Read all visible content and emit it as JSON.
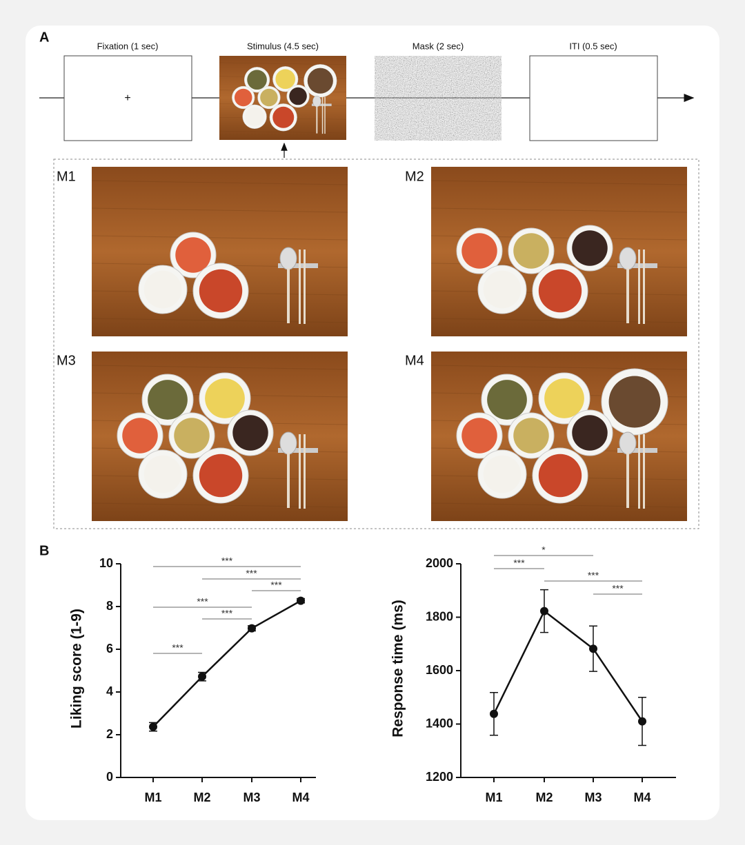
{
  "panel_a": {
    "label": "A",
    "stages": [
      "Fixation (1 sec)",
      "Stimulus (4.5 sec)",
      "Mask (2 sec)",
      "ITI (0.5 sec)"
    ],
    "fixation_cross": "+",
    "menus": [
      "M1",
      "M2",
      "M3",
      "M4"
    ]
  },
  "panel_b": {
    "label": "B"
  },
  "chart_data": [
    {
      "type": "line",
      "y_label": "Liking score (1-9)",
      "categories": [
        "M1",
        "M2",
        "M3",
        "M4"
      ],
      "values": [
        2.37,
        4.72,
        6.98,
        8.27
      ],
      "errors": [
        0.2,
        0.2,
        0.12,
        0.1
      ],
      "color": "#111111",
      "ylim": [
        0,
        10
      ],
      "yticks": [
        0,
        2,
        4,
        6,
        8,
        10
      ],
      "comparisons": [
        {
          "from": "M1",
          "to": "M4",
          "label": "***"
        },
        {
          "from": "M2",
          "to": "M4",
          "label": "***"
        },
        {
          "from": "M3",
          "to": "M4",
          "label": "***"
        },
        {
          "from": "M1",
          "to": "M3",
          "label": "***"
        },
        {
          "from": "M2",
          "to": "M3",
          "label": "***"
        },
        {
          "from": "M1",
          "to": "M2",
          "label": "***"
        }
      ]
    },
    {
      "type": "line",
      "y_label": "Response time (ms)",
      "categories": [
        "M1",
        "M2",
        "M3",
        "M4"
      ],
      "values": [
        1438,
        1823,
        1682,
        1410
      ],
      "errors": [
        80,
        80,
        85,
        90
      ],
      "color": "#111111",
      "ylim": [
        1200,
        2000
      ],
      "yticks": [
        1200,
        1400,
        1600,
        1800,
        2000
      ],
      "comparisons": [
        {
          "from": "M1",
          "to": "M3",
          "label": "*"
        },
        {
          "from": "M1",
          "to": "M2",
          "label": "***"
        },
        {
          "from": "M2",
          "to": "M4",
          "label": "***"
        },
        {
          "from": "M3",
          "to": "M4",
          "label": "***"
        }
      ]
    }
  ]
}
